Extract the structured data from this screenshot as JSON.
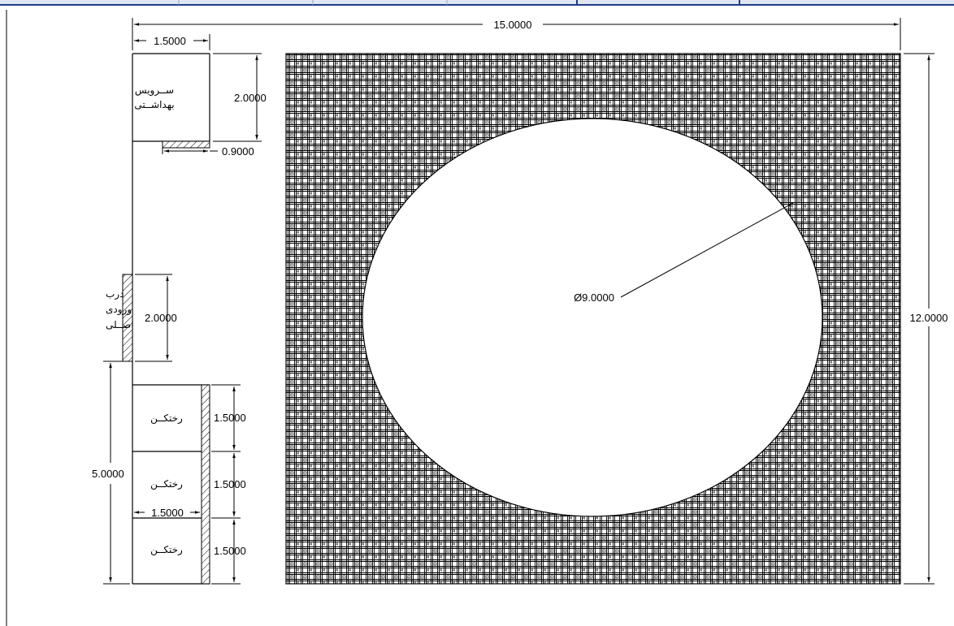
{
  "dimensions": {
    "overall_width": "15.0000",
    "left_width": "1.5000",
    "service_height": "2.0000",
    "service_door": "0.9000",
    "entrance_height": "2.0000",
    "changing_total": "5.0000",
    "changing_1": "1.5000",
    "changing_2": "1.5000",
    "changing_3": "1.5000",
    "changing_width": "1.5000",
    "overall_height": "12.0000",
    "pool_diameter": "Ø9.0000"
  },
  "rooms": {
    "service_line1": "ســرویس",
    "service_line2": "بهداشــتی",
    "entrance_line1": "درب",
    "entrance_line2": "ورودی",
    "entrance_line3": "اصــلی",
    "changing_1": "رختکــن",
    "changing_2": "رختکــن",
    "changing_3": "رختکــن"
  },
  "colors": {
    "line": "#000000",
    "hatch": "#000000",
    "top_bar": "#1f3c8c",
    "background": "#ffffff"
  }
}
